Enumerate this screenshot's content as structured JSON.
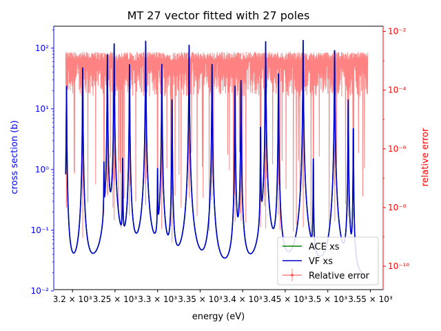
{
  "chart_data": {
    "type": "line",
    "title": "MT 27 vector fitted with 27 poles",
    "xlabel": "energy (eV)",
    "ylabel": "cross section (b)",
    "ylabel_right": "relative error",
    "x_scale": "linear",
    "y_scale": "log",
    "y_right_scale": "log",
    "xlim": [
      3178,
      3565
    ],
    "ylim": [
      0.0105,
      230
    ],
    "ylim_right": [
      1.6e-11,
      0.015
    ],
    "x_ticks": [
      {
        "value": 3200,
        "label": "3.2 × 10³"
      },
      {
        "value": 3250,
        "label": "3.25 × 10³"
      },
      {
        "value": 3300,
        "label": "3.3 × 10³"
      },
      {
        "value": 3350,
        "label": "3.35 × 10³"
      },
      {
        "value": 3400,
        "label": "3.4 × 10³"
      },
      {
        "value": 3450,
        "label": "3.45 × 10³"
      },
      {
        "value": 3500,
        "label": "3.5 × 10³"
      },
      {
        "value": 3550,
        "label": "3.55 × 10³"
      }
    ],
    "y_ticks": [
      {
        "value": 0.01,
        "label": "10⁻²"
      },
      {
        "value": 0.1,
        "label": "10⁻¹"
      },
      {
        "value": 1,
        "label": "10⁰"
      },
      {
        "value": 10,
        "label": "10¹"
      },
      {
        "value": 100,
        "label": "10²"
      }
    ],
    "y_right_ticks": [
      {
        "value": 1e-10,
        "label": "10⁻¹⁰"
      },
      {
        "value": 1e-08,
        "label": "10⁻⁸"
      },
      {
        "value": 1e-06,
        "label": "10⁻⁶"
      },
      {
        "value": 0.0001,
        "label": "10⁻⁴"
      },
      {
        "value": 0.01,
        "label": "10⁻²"
      }
    ],
    "energy_range": [
      3192,
      3547
    ],
    "resonances": [
      {
        "e0": 3193,
        "peak": 26
      },
      {
        "e0": 3212,
        "peak": 48
      },
      {
        "e0": 3237,
        "peak": 1.2
      },
      {
        "e0": 3241,
        "peak": 80
      },
      {
        "e0": 3249,
        "peak": 125
      },
      {
        "e0": 3259,
        "peak": 1.5
      },
      {
        "e0": 3267,
        "peak": 55
      },
      {
        "e0": 3286,
        "peak": 140
      },
      {
        "e0": 3300,
        "peak": 1.0
      },
      {
        "e0": 3305,
        "peak": 55
      },
      {
        "e0": 3317,
        "peak": 15
      },
      {
        "e0": 3337,
        "peak": 120
      },
      {
        "e0": 3364,
        "peak": 60
      },
      {
        "e0": 3391,
        "peak": 25
      },
      {
        "e0": 3398,
        "peak": 30
      },
      {
        "e0": 3421,
        "peak": 5
      },
      {
        "e0": 3427,
        "peak": 130
      },
      {
        "e0": 3442,
        "peak": 40
      },
      {
        "e0": 3471,
        "peak": 140
      },
      {
        "e0": 3483,
        "peak": 1.5
      },
      {
        "e0": 3508,
        "peak": 100
      },
      {
        "e0": 3524,
        "peak": 15
      },
      {
        "e0": 3530,
        "peak": 5
      }
    ],
    "background_xs": 0.011,
    "error_envelope": {
      "floor": 6e-05,
      "ceiling": 0.002
    },
    "series": [
      {
        "name": "ACE xs",
        "color": "#008000"
      },
      {
        "name": "VF xs",
        "color": "#0000cc"
      },
      {
        "name": "Relative error",
        "color": "#ff4d4d",
        "axis": "right"
      }
    ],
    "legend": "lower-right",
    "grid": false,
    "left_axis_color": "#0000ff",
    "right_axis_color": "#ff0000"
  }
}
